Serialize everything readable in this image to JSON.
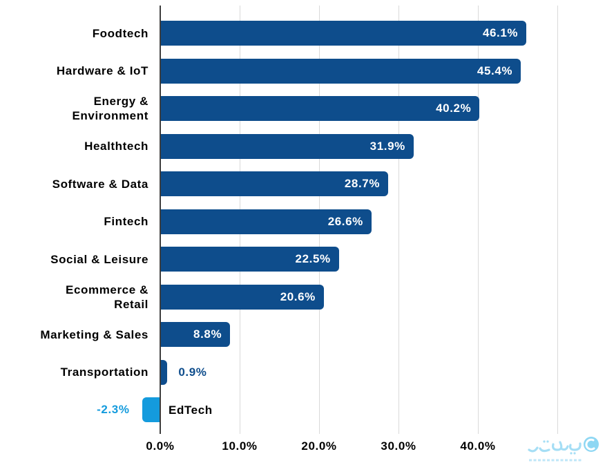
{
  "chart_data": {
    "type": "bar",
    "orientation": "horizontal",
    "categories": [
      "Foodtech",
      "Hardware & IoT",
      "Energy &\nEnvironment",
      "Healthtech",
      "Software & Data",
      "Fintech",
      "Social & Leisure",
      "Ecommerce &\nRetail",
      "Marketing & Sales",
      "Transportation",
      "EdTech"
    ],
    "values": [
      46.1,
      45.4,
      40.2,
      31.9,
      28.7,
      26.6,
      22.5,
      20.6,
      8.8,
      0.9,
      -2.3
    ],
    "value_labels": [
      "46.1%",
      "45.4%",
      "40.2%",
      "31.9%",
      "28.7%",
      "26.6%",
      "22.5%",
      "20.6%",
      "8.8%",
      "0.9%",
      "-2.3%"
    ],
    "x_ticks": [
      {
        "label": "0.0%",
        "value": 0
      },
      {
        "label": "10.0%",
        "value": 10
      },
      {
        "label": "20.0%",
        "value": 20
      },
      {
        "label": "30.0%",
        "value": 30
      },
      {
        "label": "40.0%",
        "value": 40
      }
    ],
    "gridline_values": [
      0,
      10,
      20,
      30,
      40,
      50
    ],
    "xlim": [
      -5,
      50
    ],
    "grid": true,
    "legend_position": "none",
    "colors": {
      "bar": "#0e4d8c",
      "bar_negative": "#149bdd",
      "value_inside": "#ffffff",
      "value_outside_positive": "#0e4d8c",
      "value_outside_negative": "#149bdd",
      "category_text": "#000000",
      "tick_text": "#000000",
      "axis_line": "#3d3d3d",
      "gridline": "#d9d9d9",
      "background": "#ffffff"
    }
  },
  "watermark": {
    "text": "پیوست",
    "color": "#9edcf4"
  }
}
